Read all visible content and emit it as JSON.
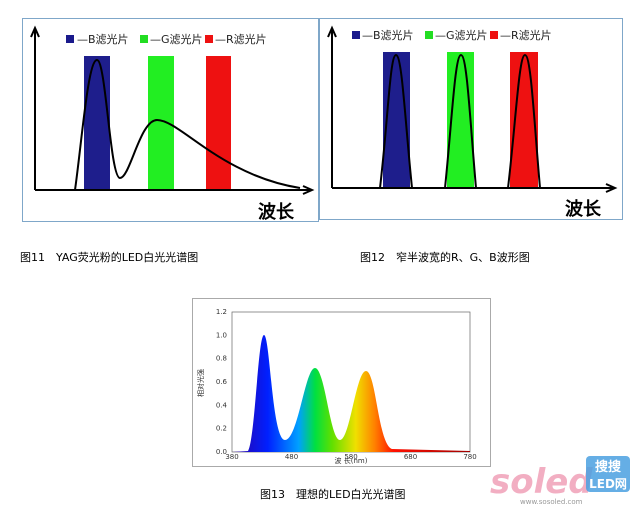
{
  "figures": [
    {
      "legend": [
        "—B滤光片",
        "—G滤光片",
        "—R滤光片"
      ],
      "axis_label": "波长",
      "caption": "图11　YAG荧光粉的LED白光光谱图"
    },
    {
      "legend": [
        "—B滤光片",
        "—G滤光片",
        "—R滤光片"
      ],
      "axis_label": "波长",
      "caption": "图12　窄半波宽的R、G、B波形图"
    },
    {
      "y_axis_label": "相对光强",
      "x_axis_label": "波 长(nm)",
      "yticks": [
        "0.0",
        "0.2",
        "0.4",
        "0.6",
        "0.8",
        "1.0",
        "1.2"
      ],
      "xticks": [
        "380",
        "480",
        "580",
        "680",
        "780"
      ],
      "caption": "图13　理想的LED白光光谱图"
    }
  ],
  "watermark": {
    "logo": "soled",
    "badge_top": "搜搜",
    "badge_bottom": "LED网",
    "url": "www.sosoled.com"
  }
}
